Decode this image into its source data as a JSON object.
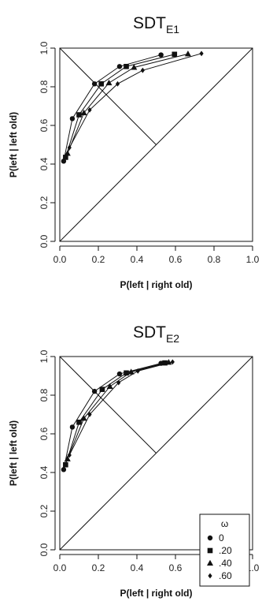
{
  "chart_data": [
    {
      "type": "line",
      "title": "SDT",
      "title_subscript": "E1",
      "xlabel": "P(left | right old)",
      "ylabel": "P(left | left old)",
      "xlim": [
        0,
        1
      ],
      "ylim": [
        0,
        1
      ],
      "xticks": [
        "0.0",
        "0.2",
        "0.4",
        "0.6",
        "0.8",
        "1.0"
      ],
      "yticks": [
        "0.0",
        "0.2",
        "0.4",
        "0.6",
        "0.8",
        "1.0"
      ],
      "reference_lines": [
        {
          "x": [
            0,
            1
          ],
          "y": [
            0,
            1
          ]
        },
        {
          "x": [
            0,
            0.5
          ],
          "y": [
            1,
            0.5
          ]
        }
      ],
      "series": [
        {
          "name": "0",
          "marker": "circle",
          "points": [
            [
              0.02,
              0.415
            ],
            [
              0.065,
              0.635
            ],
            [
              0.18,
              0.815
            ],
            [
              0.31,
              0.905
            ],
            [
              0.525,
              0.965
            ]
          ]
        },
        {
          "name": ".20",
          "marker": "square",
          "points": [
            [
              0.03,
              0.435
            ],
            [
              0.1,
              0.655
            ],
            [
              0.215,
              0.815
            ],
            [
              0.345,
              0.905
            ],
            [
              0.595,
              0.968
            ]
          ]
        },
        {
          "name": ".40",
          "marker": "triangle",
          "points": [
            [
              0.04,
              0.455
            ],
            [
              0.125,
              0.665
            ],
            [
              0.255,
              0.82
            ],
            [
              0.385,
              0.9
            ],
            [
              0.665,
              0.97
            ]
          ]
        },
        {
          "name": ".60",
          "marker": "diamond",
          "points": [
            [
              0.05,
              0.485
            ],
            [
              0.155,
              0.68
            ],
            [
              0.3,
              0.815
            ],
            [
              0.43,
              0.885
            ],
            [
              0.735,
              0.972
            ]
          ]
        }
      ]
    },
    {
      "type": "line",
      "title": "SDT",
      "title_subscript": "E2",
      "xlabel": "P(left | right old)",
      "ylabel": "P(left | left old)",
      "xlim": [
        0,
        1
      ],
      "ylim": [
        0,
        1
      ],
      "xticks": [
        "0.0",
        "0.2",
        "0.4",
        "0.6",
        "0.8",
        "1.0"
      ],
      "yticks": [
        "0.0",
        "0.2",
        "0.4",
        "0.6",
        "0.8",
        "1.0"
      ],
      "reference_lines": [
        {
          "x": [
            0,
            1
          ],
          "y": [
            0,
            1
          ]
        },
        {
          "x": [
            0,
            0.5
          ],
          "y": [
            1,
            0.5
          ]
        }
      ],
      "legend": {
        "title": "ω",
        "position": "bottom-right",
        "entries": [
          "0",
          ".20",
          ".40",
          ".60"
        ]
      },
      "series": [
        {
          "name": "0",
          "marker": "circle",
          "points": [
            [
              0.02,
              0.415
            ],
            [
              0.065,
              0.635
            ],
            [
              0.18,
              0.82
            ],
            [
              0.31,
              0.91
            ],
            [
              0.525,
              0.965
            ]
          ]
        },
        {
          "name": ".20",
          "marker": "square",
          "points": [
            [
              0.03,
              0.44
            ],
            [
              0.1,
              0.66
            ],
            [
              0.22,
              0.83
            ],
            [
              0.345,
              0.915
            ],
            [
              0.545,
              0.967
            ]
          ]
        },
        {
          "name": ".40",
          "marker": "triangle",
          "points": [
            [
              0.04,
              0.47
            ],
            [
              0.125,
              0.68
            ],
            [
              0.26,
              0.845
            ],
            [
              0.37,
              0.92
            ],
            [
              0.565,
              0.97
            ]
          ]
        },
        {
          "name": ".60",
          "marker": "diamond",
          "points": [
            [
              0.05,
              0.49
            ],
            [
              0.155,
              0.7
            ],
            [
              0.305,
              0.865
            ],
            [
              0.405,
              0.925
            ],
            [
              0.585,
              0.972
            ]
          ]
        }
      ]
    }
  ]
}
